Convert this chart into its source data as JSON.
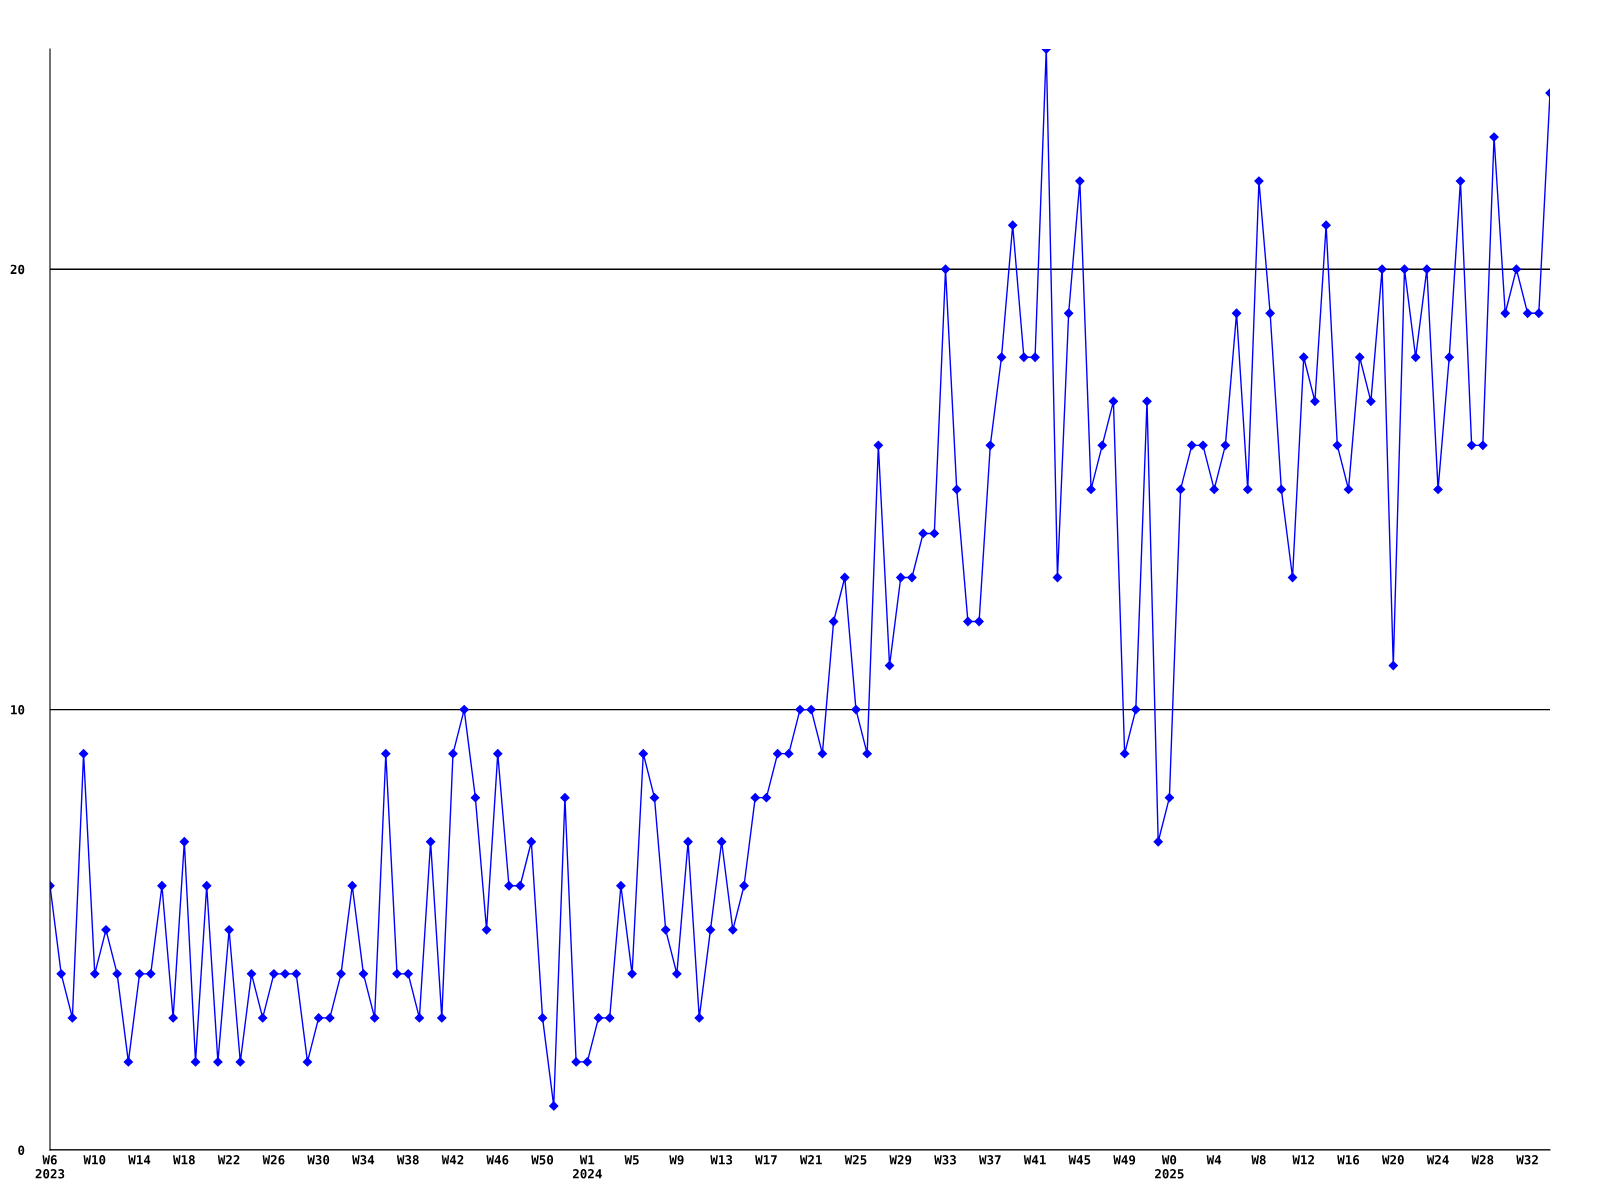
{
  "chart_data": {
    "type": "line",
    "categories": [
      "W6\n2023",
      null,
      null,
      null,
      "W10",
      null,
      null,
      null,
      "W14",
      null,
      null,
      null,
      "W18",
      null,
      null,
      null,
      "W22",
      null,
      null,
      null,
      "W26",
      null,
      null,
      null,
      "W30",
      null,
      null,
      null,
      "W34",
      null,
      null,
      null,
      "W38",
      null,
      null,
      null,
      "W42",
      null,
      null,
      null,
      "W46",
      null,
      null,
      null,
      "W50",
      null,
      null,
      null,
      "W1\n2024",
      null,
      null,
      null,
      "W5",
      null,
      null,
      null,
      "W9",
      null,
      null,
      null,
      "W13",
      null,
      null,
      null,
      "W17",
      null,
      null,
      null,
      "W21",
      null,
      null,
      null,
      "W25",
      null,
      null,
      null,
      "W29",
      null,
      null,
      null,
      "W33",
      null,
      null,
      null,
      "W37",
      null,
      null,
      null,
      "W41",
      null,
      null,
      null,
      "W45",
      null,
      null,
      null,
      "W49",
      null,
      null,
      null,
      "W0\n2025",
      null,
      null,
      null,
      "W4",
      null,
      null,
      null,
      "W8",
      null,
      null,
      null,
      "W12",
      null,
      null,
      null,
      "W16",
      null,
      null,
      null,
      "W20",
      null,
      null,
      null,
      "W24",
      null,
      null,
      null,
      "W28",
      null,
      null,
      null,
      "W32",
      null,
      null
    ],
    "series": [
      {
        "color": "#0000ff",
        "values": [
          6,
          4,
          3,
          9,
          4,
          5,
          4,
          2,
          4,
          4,
          6,
          3,
          7,
          2,
          6,
          2,
          5,
          2,
          4,
          3,
          4,
          4,
          4,
          2,
          3,
          3,
          4,
          6,
          4,
          3,
          9,
          4,
          4,
          3,
          7,
          3,
          9,
          10,
          8,
          5,
          9,
          6,
          6,
          7,
          3,
          1,
          8,
          2,
          2,
          3,
          3,
          6,
          4,
          9,
          8,
          5,
          4,
          7,
          3,
          5,
          7,
          5,
          6,
          8,
          8,
          9,
          9,
          10,
          10,
          9,
          12,
          13,
          10,
          9,
          16,
          11,
          13,
          13,
          14,
          14,
          20,
          15,
          12,
          12,
          16,
          18,
          21,
          18,
          18,
          25,
          13,
          19,
          22,
          15,
          16,
          17,
          9,
          10,
          17,
          7,
          8,
          15,
          16,
          16,
          15,
          16,
          19,
          15,
          22,
          19,
          15,
          13,
          18,
          17,
          21,
          16,
          15,
          18,
          17,
          20,
          11,
          20,
          18,
          20,
          15,
          18,
          22,
          16,
          16,
          23,
          19,
          20,
          19,
          19,
          24
        ]
      }
    ],
    "ylim": [
      0,
      25
    ],
    "yticks": [
      0,
      10,
      20
    ],
    "grid": "y",
    "marker": "diamond",
    "line_style": "solid",
    "legend": false
  }
}
